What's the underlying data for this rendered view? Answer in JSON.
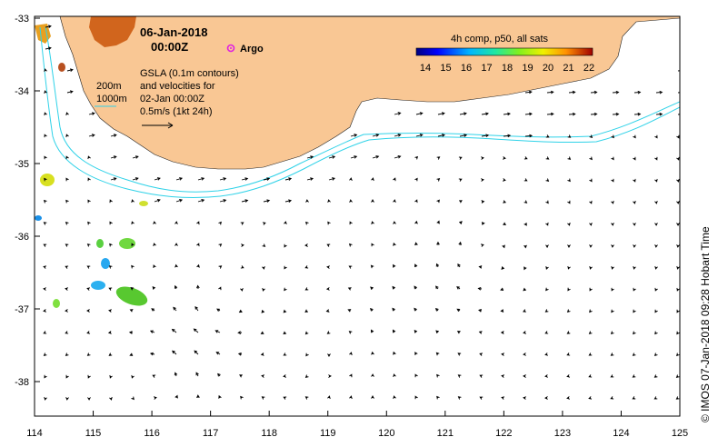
{
  "map": {
    "date_line": "06-Jan-2018",
    "time_line": "00:00Z",
    "argo_label": "Argo",
    "contour_200": "200m",
    "contour_1000": "1000m",
    "gsla_lines": [
      "GSLA (0.1m contours)",
      "and velocities for",
      "02-Jan 00:00Z",
      "0.5m/s (1kt 24h)"
    ],
    "colorbar_title": "4h comp, p50, all sats",
    "colorbar_ticks": [
      "14",
      "15",
      "16",
      "17",
      "18",
      "19",
      "20",
      "21",
      "22"
    ],
    "credit": "© IMOS 07-Jan-2018 09:28 Hobart Time",
    "x_ticks": [
      "114",
      "115",
      "116",
      "117",
      "118",
      "119",
      "120",
      "121",
      "122",
      "123",
      "124",
      "125"
    ],
    "y_ticks": [
      "-33",
      "-34",
      "-35",
      "-36",
      "-37",
      "-38"
    ],
    "colors": {
      "land": "#f9c794",
      "contour": "#2fd2e8",
      "argo": "#e020e0"
    }
  }
}
